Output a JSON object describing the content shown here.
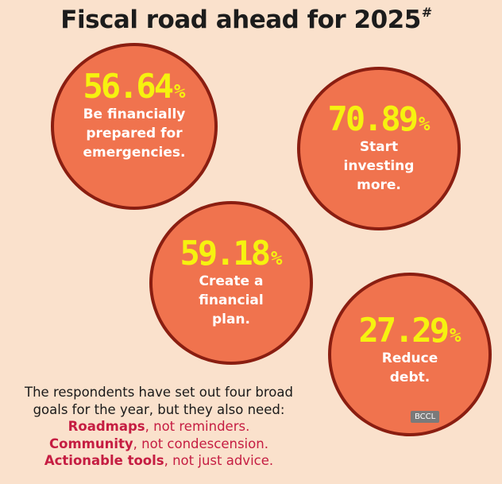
{
  "title": "Fiscal road ahead for 2025",
  "title_mark": "#",
  "unit": "%",
  "goals": [
    {
      "value": "56.64",
      "label": "Be financially\nprepared for\nemergencies."
    },
    {
      "value": "70.89",
      "label": "Start\ninvesting\nmore."
    },
    {
      "value": "59.18",
      "label": "Create a\nfinancial\nplan."
    },
    {
      "value": "27.29",
      "label": "Reduce\ndebt."
    }
  ],
  "footer": {
    "intro_line1": "The respondents have set out four broad",
    "intro_line2": "goals for the year, but they also need:",
    "needs": [
      {
        "strong": "Roadmaps",
        "rest": ", not reminders."
      },
      {
        "strong": "Community",
        "rest": ", not condescension."
      },
      {
        "strong": "Actionable tools",
        "rest": ", not just advice."
      }
    ]
  },
  "watermark": "BCCL",
  "colors": {
    "background": "#fae1cc",
    "bubble_fill": "#f0734e",
    "bubble_ring": "#8a1e11",
    "percentage": "#f6f20f",
    "highlight": "#c51d42"
  }
}
